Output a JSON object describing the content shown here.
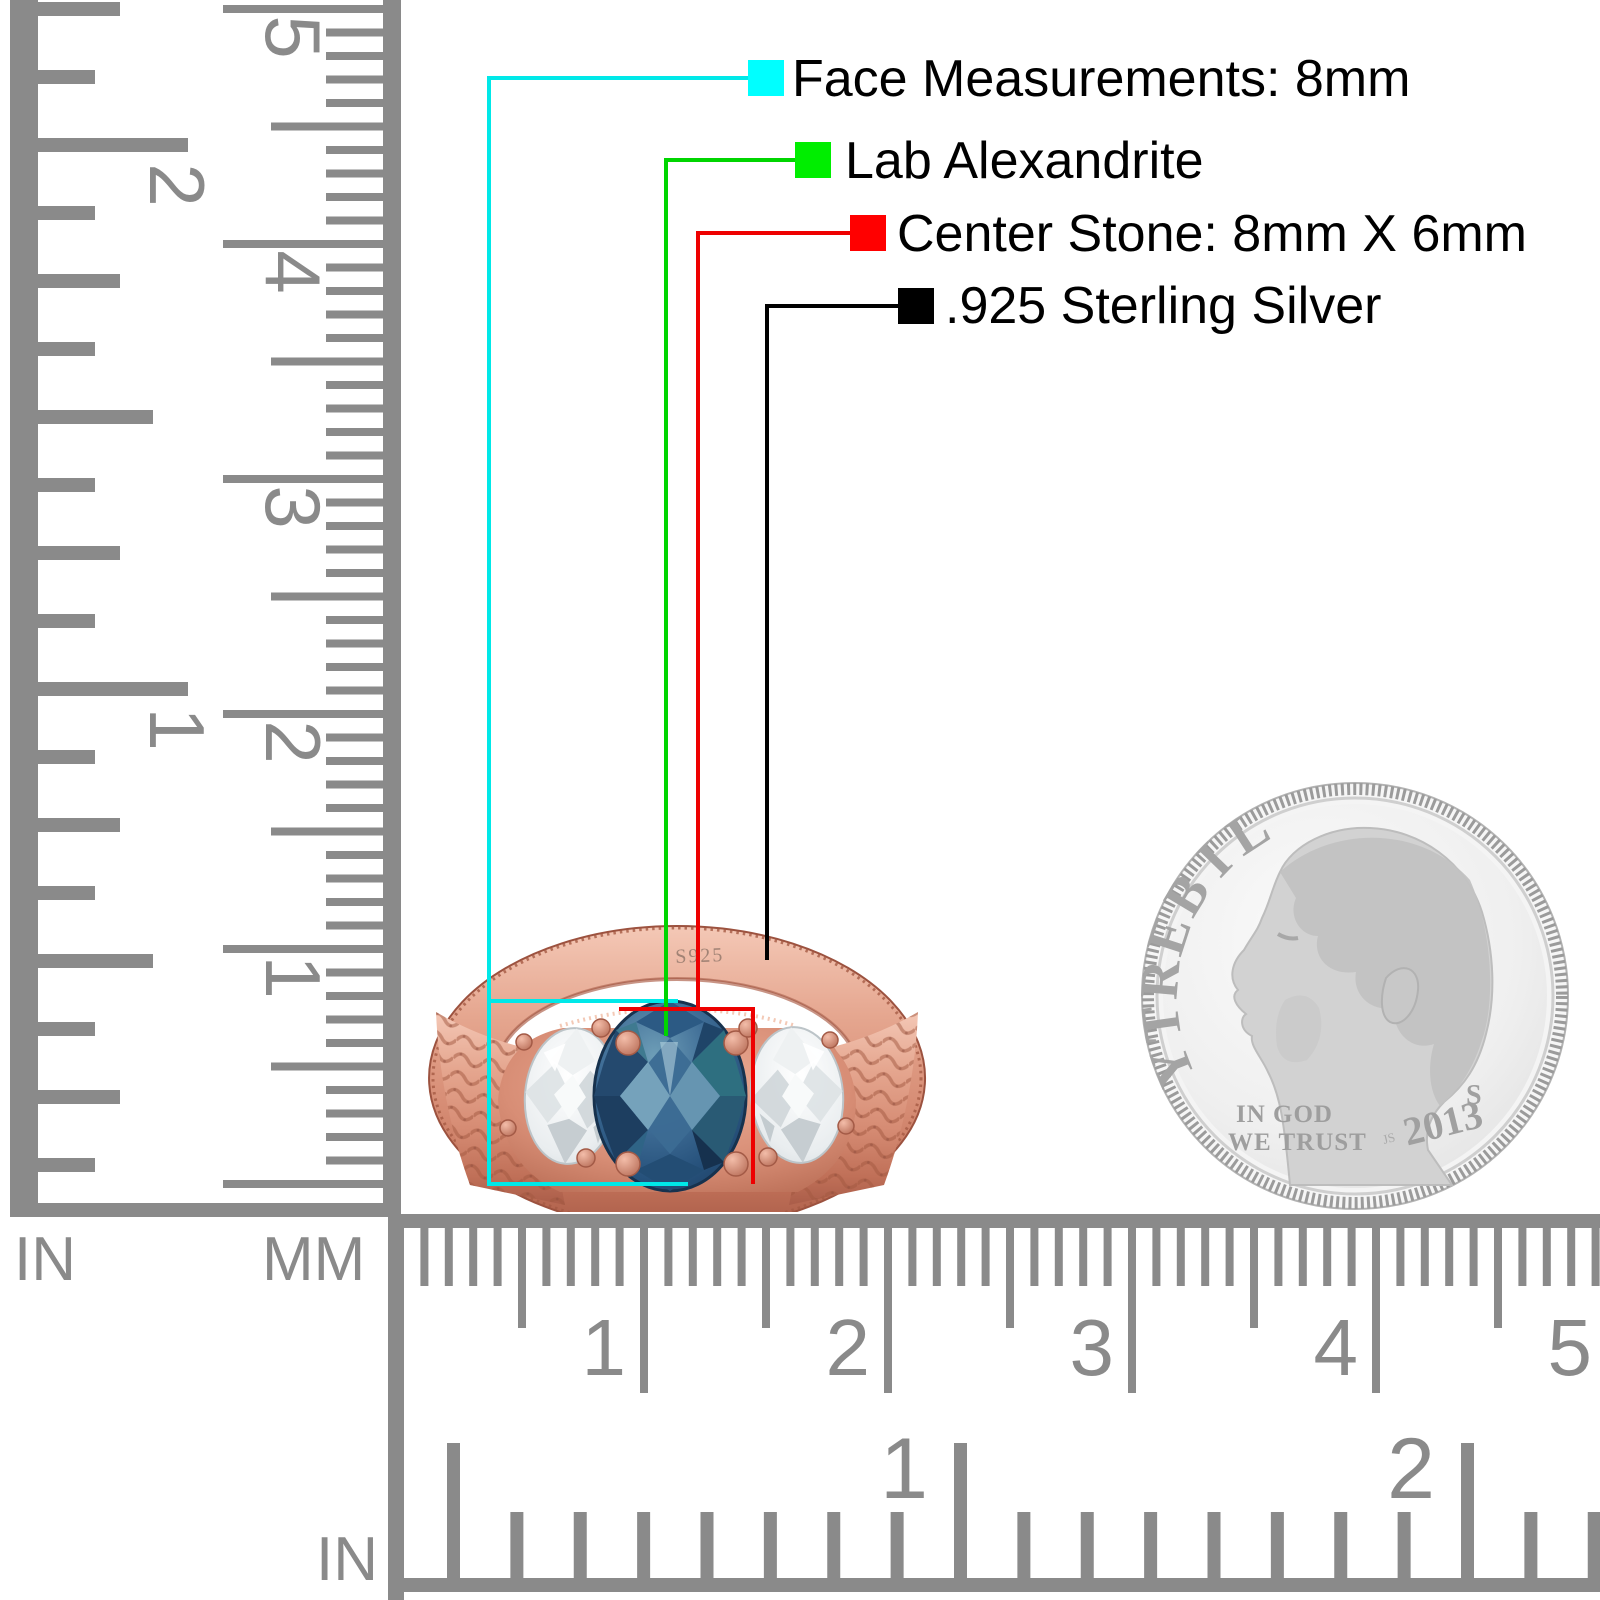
{
  "legend": {
    "items": [
      {
        "label": "Face Measurements: 8mm",
        "swatch_color": "#00ffff",
        "line_color": "#00e8e8"
      },
      {
        "label": "Lab Alexandrite",
        "swatch_color": "#00ee00",
        "line_color": "#00d500"
      },
      {
        "label": "Center Stone: 8mm X 6mm",
        "swatch_color": "#ff0000",
        "line_color": "#ee0000"
      },
      {
        "label": ".925 Sterling Silver",
        "swatch_color": "#000000",
        "line_color": "#000000"
      }
    ]
  },
  "rulers": {
    "left_inch": {
      "label": "IN",
      "numbers": [
        "2",
        "1"
      ]
    },
    "left_mm": {
      "label": "MM",
      "numbers": [
        "5",
        "4",
        "3",
        "2",
        "1"
      ]
    },
    "bottom_mm": {
      "numbers": [
        "1",
        "2",
        "3",
        "4",
        "5"
      ]
    },
    "bottom_inch": {
      "label": "IN",
      "numbers": [
        "1",
        "2"
      ]
    }
  },
  "ring": {
    "stamp": "S925",
    "colors": {
      "metal_light": "#f2c4b2",
      "metal": "#d89480",
      "metal_dark": "#a85c48",
      "center_stone_blue": "#2e567e",
      "center_stone_teal": "#2e6f80",
      "side_stone": "#e6eaec"
    }
  },
  "coin": {
    "liberty_letters": [
      "L",
      "I",
      "B",
      "E",
      "R",
      "T",
      "Y"
    ],
    "motto_line1": "IN GOD",
    "motto_line2": "WE TRUST",
    "date": "2013",
    "mint_mark": "S",
    "designer_initials": "JS"
  }
}
